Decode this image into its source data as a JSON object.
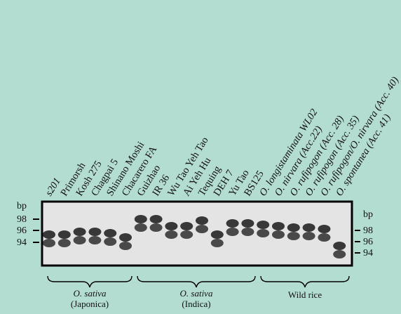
{
  "lanes": [
    "s201",
    "Primorsh",
    "Kosh 275",
    "Chagpai 5",
    "Shinano Moshi",
    "Chacarero FA",
    "Guizhao",
    "IR 36",
    "Wu Tao Yeh Tao",
    "Ai Yeh Hu",
    "Tequing",
    "DEH 7",
    "Yu Tao",
    "BS125",
    "O. longistaminata WL02",
    "O. nirvara (Acc.22)",
    "O. rufipogon (Acc. 28)",
    "O. rufipogon (Acc. 35)",
    "O. rufipogon/O. nirvara (Acc. 40)",
    "O. spontanea (Acc. 41)"
  ],
  "left_scale": {
    "unit": "bp",
    "ticks": [
      "98",
      "96",
      "94"
    ]
  },
  "right_scale": {
    "unit": "bp",
    "ticks": [
      "98",
      "96",
      "94"
    ]
  },
  "groups": [
    {
      "name": "O. sativa",
      "sub": "(Japonica)"
    },
    {
      "name": "O. sativa",
      "sub": "(Indica)"
    },
    {
      "name": "Wild rice"
    }
  ]
}
